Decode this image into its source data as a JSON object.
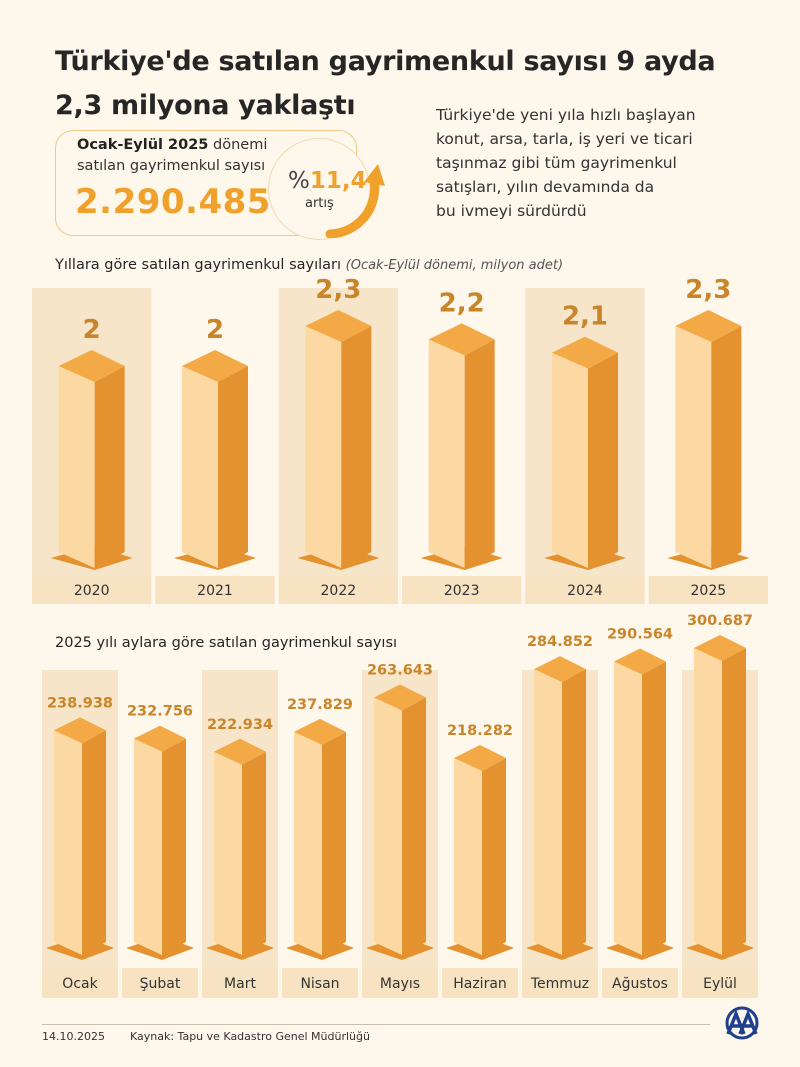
{
  "header": {
    "title_line1": "Türkiye'de satılan gayrimenkul sayısı 9 ayda",
    "title_line2": "2,3 milyona yaklaştı",
    "intro_lines": [
      "Türkiye'de yeni yıla hızlı başlayan",
      "konut, arsa, tarla, iş yeri ve ticari",
      "taşınmaz gibi tüm gayrimenkul",
      "satışları, yılın devamında da",
      "bu ivmeyi sürdürdü"
    ]
  },
  "stat": {
    "period_bold": "Ocak-Eylül 2025",
    "period_rest": " dönemi",
    "label2": "satılan gayrimenkul sayısı",
    "value": "2.290.485",
    "percent_symbol": "%",
    "percent_value": "11,4",
    "percent_label": "artış"
  },
  "colors": {
    "bar_front": "#fcd9a2",
    "bar_side": "#e4912f",
    "bar_top": "#f3a946",
    "accent": "#f0a12c",
    "label_text": "#c9852a",
    "stripe": "#f6e5c9"
  },
  "chart_data": [
    {
      "type": "bar",
      "title": "Yıllara göre satılan gayrimenkul sayıları",
      "subtitle": "(Ocak-Eylül dönemi, milyon adet)",
      "categories": [
        "2020",
        "2021",
        "2022",
        "2023",
        "2024",
        "2025"
      ],
      "values": [
        2,
        2,
        2.3,
        2.2,
        2.1,
        2.3
      ],
      "value_labels": [
        "2",
        "2",
        "2,3",
        "2,2",
        "2,1",
        "2,3"
      ],
      "xlabel": "",
      "ylabel": "",
      "grid": false,
      "legend": "none"
    },
    {
      "type": "bar",
      "title": "2025 yılı aylara göre satılan gayrimenkul sayısı",
      "categories": [
        "Ocak",
        "Şubat",
        "Mart",
        "Nisan",
        "Mayıs",
        "Haziran",
        "Temmuz",
        "Ağustos",
        "Eylül"
      ],
      "values": [
        238938,
        232756,
        222934,
        237829,
        263643,
        218282,
        284852,
        290564,
        300687
      ],
      "value_labels": [
        "238.938",
        "232.756",
        "222.934",
        "237.829",
        "263.643",
        "218.282",
        "284.852",
        "290.564",
        "300.687"
      ],
      "xlabel": "",
      "ylabel": "",
      "grid": false,
      "legend": "none"
    }
  ],
  "footer": {
    "date": "14.10.2025",
    "source": "Kaynak: Tapu ve Kadastro Genel Müdürlüğü"
  },
  "logo": {
    "icon": "aa-logo-icon"
  }
}
